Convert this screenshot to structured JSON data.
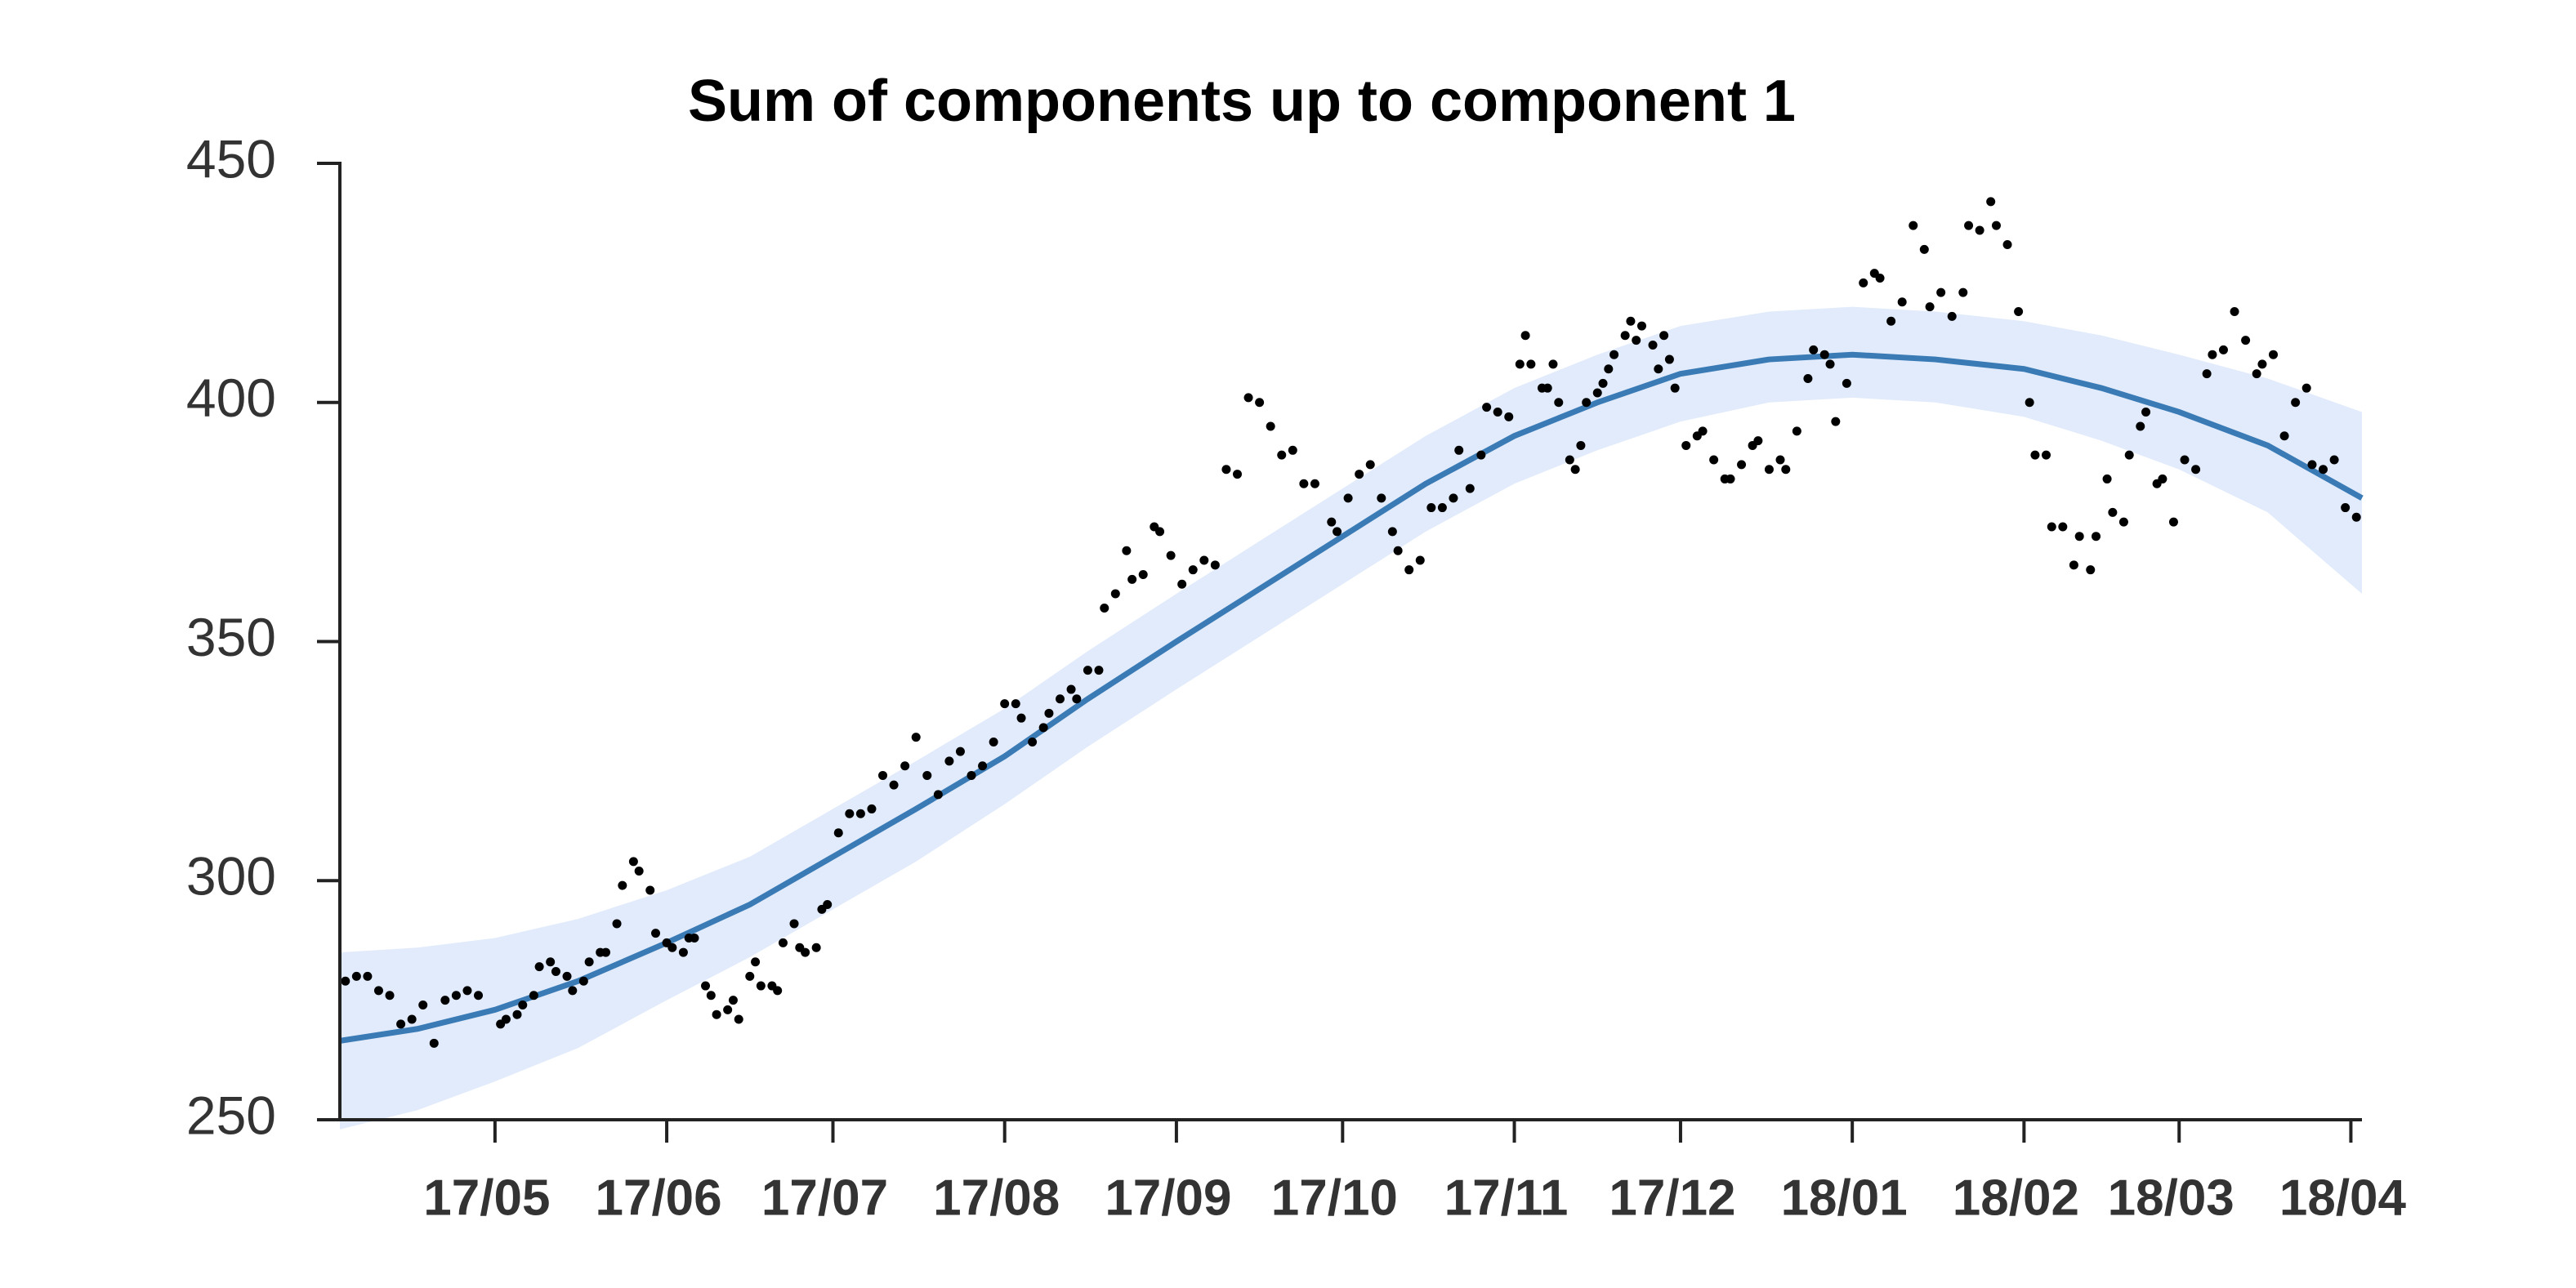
{
  "chart_data": {
    "type": "scatter",
    "title": "Sum of components up to component 1",
    "x": [
      -27,
      -25,
      -23,
      -21,
      -19,
      -17,
      -15,
      -13,
      -11,
      -9,
      -7,
      -5,
      -3,
      1,
      2,
      4,
      5,
      7,
      8,
      10,
      11,
      13,
      14,
      16,
      17,
      19,
      20,
      22,
      23,
      25,
      26,
      28,
      29,
      31,
      32,
      34,
      35,
      36,
      38,
      39,
      40,
      42,
      43,
      44,
      46,
      47,
      48,
      50,
      51,
      52,
      54,
      55,
      56,
      58,
      59,
      60,
      62,
      64,
      66,
      68,
      70,
      72,
      74,
      76,
      78,
      80,
      82,
      84,
      86,
      88,
      90,
      92,
      94,
      95,
      97,
      99,
      100,
      102,
      104,
      105,
      107,
      109,
      110,
      112,
      114,
      115,
      117,
      119,
      120,
      122,
      124,
      126,
      128,
      130,
      132,
      134,
      136,
      138,
      140,
      142,
      144,
      146,
      148,
      151,
      152,
      154,
      156,
      158,
      160,
      162,
      163,
      165,
      167,
      169,
      171,
      173,
      174,
      176,
      178,
      179,
      181,
      183,
      185,
      186,
      187,
      189,
      190,
      191,
      192,
      194,
      195,
      196,
      197,
      199,
      200,
      201,
      202,
      204,
      205,
      206,
      207,
      209,
      210,
      211,
      212,
      213,
      215,
      217,
      218,
      220,
      222,
      223,
      225,
      227,
      228,
      230,
      232,
      233,
      235,
      237,
      238,
      240,
      241,
      242,
      244,
      247,
      249,
      250,
      252,
      254,
      256,
      258,
      259,
      261,
      263,
      265,
      266,
      268,
      270,
      271,
      273,
      275,
      277,
      278,
      280,
      281,
      283,
      285,
      286,
      288,
      289,
      291,
      292,
      294,
      295,
      297,
      298,
      300,
      301,
      303,
      305,
      307,
      309,
      310,
      312,
      314,
      316,
      318,
      319,
      321,
      323,
      325,
      327,
      328,
      330,
      332,
      334,
      336
    ],
    "values": [
      279,
      280,
      280,
      277,
      276,
      270,
      271,
      274,
      266,
      275,
      276,
      277,
      276,
      270,
      271,
      272,
      274,
      276,
      282,
      283,
      281,
      280,
      277,
      279,
      283,
      285,
      285,
      291,
      299,
      304,
      302,
      298,
      289,
      287,
      286,
      285,
      288,
      288,
      278,
      276,
      272,
      273,
      275,
      271,
      280,
      283,
      278,
      278,
      277,
      287,
      291,
      286,
      285,
      286,
      294,
      295,
      310,
      314,
      314,
      315,
      322,
      320,
      324,
      330,
      322,
      318,
      325,
      327,
      322,
      324,
      329,
      337,
      337,
      334,
      329,
      332,
      335,
      338,
      340,
      338,
      344,
      344,
      357,
      360,
      369,
      363,
      364,
      374,
      373,
      368,
      362,
      365,
      367,
      366,
      386,
      385,
      401,
      400,
      395,
      389,
      390,
      383,
      383,
      375,
      373,
      380,
      385,
      387,
      380,
      373,
      369,
      365,
      367,
      378,
      378,
      380,
      390,
      382,
      389,
      399,
      398,
      397,
      408,
      414,
      408,
      403,
      403,
      408,
      400,
      388,
      386,
      391,
      400,
      402,
      404,
      407,
      410,
      414,
      417,
      413,
      416,
      412,
      407,
      414,
      409,
      403,
      391,
      393,
      394,
      388,
      384,
      384,
      387,
      391,
      392,
      386,
      388,
      386,
      394,
      405,
      411,
      410,
      408,
      396,
      404,
      425,
      427,
      426,
      417,
      421,
      437,
      432,
      420,
      423,
      418,
      423,
      437,
      436,
      442,
      437,
      433,
      419,
      400,
      389,
      389,
      374,
      374,
      366,
      372,
      365,
      372,
      384,
      377,
      375,
      389,
      395,
      398,
      383,
      384,
      375,
      388,
      386,
      406,
      410,
      411,
      419,
      413,
      406,
      408,
      410,
      393,
      400,
      403,
      387,
      386,
      388,
      378,
      376
    ],
    "color": "#000000",
    "fit": {
      "color": "#3a7ab5",
      "band_color": "#e1ebfb",
      "x": [
        -28,
        -14,
        0,
        15,
        31,
        46,
        61,
        76,
        92,
        107,
        123,
        138,
        153,
        168,
        184,
        199,
        214,
        230,
        245,
        260,
        276,
        290,
        304,
        320,
        337
      ],
      "values": [
        266.5,
        269,
        273,
        279,
        287,
        295,
        305,
        315,
        326,
        338,
        350,
        361,
        372,
        383,
        393,
        400,
        406,
        409,
        410,
        409,
        407,
        403,
        398,
        391,
        380
      ],
      "upper": [
        285,
        286,
        288,
        292,
        298,
        305,
        315,
        325,
        336,
        348,
        360,
        371,
        382,
        393,
        403,
        410,
        416,
        419,
        420,
        419,
        417,
        414,
        410,
        405,
        398
      ],
      "lower": [
        248,
        252,
        258,
        265,
        275,
        284,
        294,
        304,
        316,
        328,
        340,
        351,
        362,
        373,
        383,
        390,
        396,
        400,
        401,
        400,
        397,
        392,
        386,
        377,
        360
      ]
    },
    "xlim": [
      -28,
      337
    ],
    "ylim": [
      250,
      450
    ],
    "yticks": [
      250,
      300,
      350,
      400,
      450
    ],
    "xticks": [
      {
        "value": 0,
        "label": "17/05"
      },
      {
        "value": 31,
        "label": "17/06"
      },
      {
        "value": 61,
        "label": "17/07"
      },
      {
        "value": 92,
        "label": "17/08"
      },
      {
        "value": 123,
        "label": "17/09"
      },
      {
        "value": 153,
        "label": "17/10"
      },
      {
        "value": 184,
        "label": "17/11"
      },
      {
        "value": 214,
        "label": "17/12"
      },
      {
        "value": 245,
        "label": "18/01"
      },
      {
        "value": 276,
        "label": "18/02"
      },
      {
        "value": 304,
        "label": "18/03"
      },
      {
        "value": 335,
        "label": "18/04"
      }
    ],
    "grid": false
  }
}
